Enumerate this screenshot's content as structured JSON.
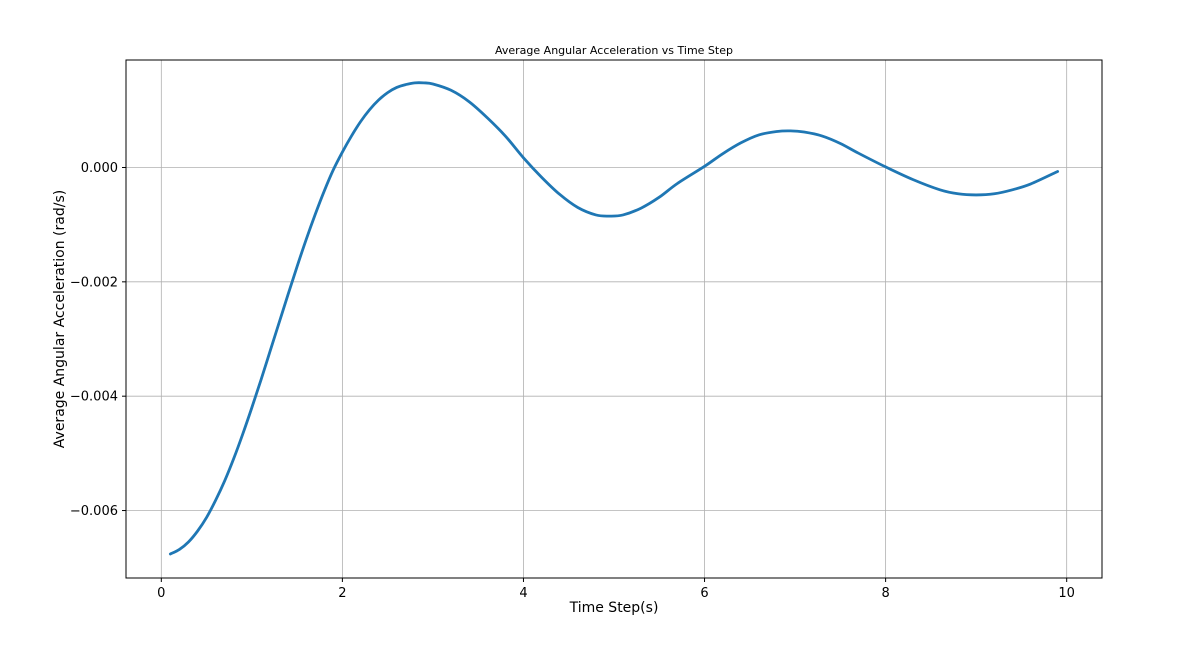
{
  "chart_data": {
    "type": "line",
    "title": "Average Angular Acceleration vs Time Step",
    "xlabel": "Time Step(s)",
    "ylabel": "Average Angular Acceleration (rad/s)",
    "xlim": [
      -0.39,
      10.39
    ],
    "ylim": [
      -0.00718,
      0.00188
    ],
    "xticks": [
      0,
      2,
      4,
      6,
      8,
      10
    ],
    "xtick_labels": [
      "0",
      "2",
      "4",
      "6",
      "8",
      "10"
    ],
    "yticks": [
      -0.006,
      -0.004,
      -0.002,
      0.0
    ],
    "ytick_labels": [
      "−0.006",
      "−0.004",
      "−0.002",
      "0.000"
    ],
    "grid": true,
    "series": [
      {
        "color": "#1f77b4",
        "x": [
          0.1,
          0.2,
          0.3,
          0.4,
          0.5,
          0.6,
          0.7,
          0.8,
          0.9,
          1.0,
          1.1,
          1.2,
          1.3,
          1.4,
          1.5,
          1.6,
          1.7,
          1.8,
          1.9,
          2.0,
          2.1,
          2.2,
          2.3,
          2.4,
          2.5,
          2.6,
          2.7,
          2.8,
          2.9,
          3.0,
          3.2,
          3.4,
          3.6,
          3.8,
          4.0,
          4.2,
          4.4,
          4.6,
          4.8,
          4.95,
          5.1,
          5.3,
          5.5,
          5.7,
          6.0,
          6.2,
          6.4,
          6.6,
          6.8,
          6.95,
          7.1,
          7.3,
          7.5,
          7.7,
          8.0,
          8.3,
          8.6,
          8.8,
          9.0,
          9.2,
          9.4,
          9.6,
          9.9
        ],
        "values": [
          -0.00676,
          -0.00668,
          -0.00655,
          -0.00636,
          -0.00612,
          -0.00582,
          -0.00548,
          -0.00509,
          -0.00466,
          -0.0042,
          -0.00372,
          -0.00322,
          -0.00272,
          -0.00222,
          -0.00173,
          -0.00126,
          -0.00082,
          -0.00041,
          -4e-05,
          0.00027,
          0.00055,
          0.0008,
          0.00101,
          0.00118,
          0.00131,
          0.0014,
          0.00145,
          0.00148,
          0.00148,
          0.00146,
          0.00135,
          0.00115,
          0.00087,
          0.00055,
          0.00017,
          -0.00017,
          -0.00047,
          -0.0007,
          -0.00083,
          -0.00085,
          -0.00083,
          -0.00071,
          -0.00052,
          -0.00028,
          2e-05,
          0.00024,
          0.00043,
          0.00057,
          0.00063,
          0.00064,
          0.00062,
          0.00055,
          0.00042,
          0.00025,
          1e-05,
          -0.00021,
          -0.00039,
          -0.00046,
          -0.00048,
          -0.00046,
          -0.00039,
          -0.00029,
          -7e-05
        ]
      }
    ]
  }
}
